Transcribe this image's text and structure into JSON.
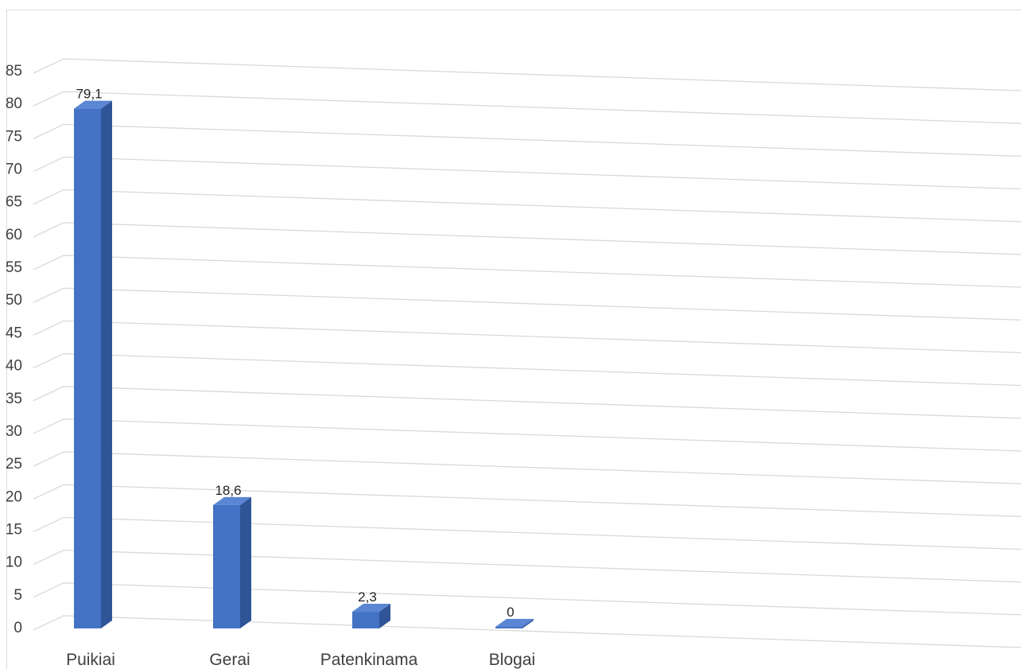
{
  "chart_data": {
    "type": "bar",
    "style": "3d-column",
    "title": "",
    "xlabel": "",
    "ylabel": "",
    "categories": [
      "Puikiai",
      "Gerai",
      "Patenkinama",
      "Blogai"
    ],
    "values": [
      79.1,
      18.6,
      2.3,
      0
    ],
    "data_labels": [
      "79,1",
      "18,6",
      "2,3",
      "0"
    ],
    "ylim": [
      0,
      85
    ],
    "yticks": [
      0,
      5,
      10,
      15,
      20,
      25,
      30,
      35,
      40,
      45,
      50,
      55,
      60,
      65,
      70,
      75,
      80,
      85
    ],
    "ytick_labels": [
      "0",
      "5",
      "10",
      "15",
      "20",
      "25",
      "30",
      "35",
      "40",
      "45",
      "50",
      "55",
      "60",
      "65",
      "70",
      "75",
      "80",
      "85"
    ],
    "grid": true,
    "legend": "none",
    "colors": {
      "bar_front": "#4472c4",
      "bar_side": "#2f5597",
      "bar_top": "#5b86d4",
      "grid": "#d9d9d9"
    }
  }
}
